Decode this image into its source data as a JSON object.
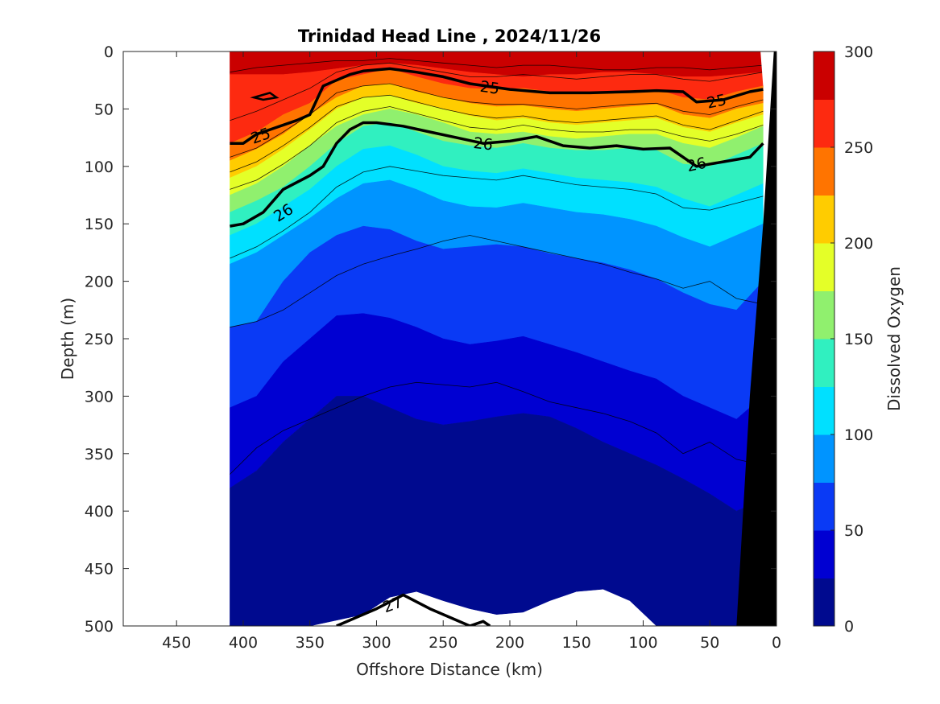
{
  "chart_data": {
    "type": "contour",
    "title": "Trinidad Head Line , 2024/11/26",
    "xlabel": "Offshore Distance (km)",
    "ylabel": "Depth (m)",
    "colorbar_label": "Dissolved Oxygen",
    "xlim": [
      490,
      0
    ],
    "x_reversed": true,
    "ylim": [
      0,
      500
    ],
    "y_reversed": true,
    "x_ticks": [
      450,
      400,
      350,
      300,
      250,
      200,
      150,
      100,
      50,
      0
    ],
    "y_ticks": [
      0,
      50,
      100,
      150,
      200,
      250,
      300,
      350,
      400,
      450,
      500
    ],
    "colorbar_ticks": [
      0,
      50,
      100,
      150,
      200,
      250,
      300
    ],
    "data_extent_x": [
      410,
      0
    ],
    "levels": [
      0,
      25,
      50,
      75,
      100,
      125,
      150,
      175,
      200,
      225,
      250,
      275,
      300
    ],
    "level_colors": [
      "#000a8f",
      "#0000d2",
      "#0a3af5",
      "#0094ff",
      "#00e0ff",
      "#30f0c0",
      "#90f06e",
      "#e4ff28",
      "#ffcc00",
      "#ff7400",
      "#fd2a10",
      "#ca0000"
    ],
    "x": [
      410,
      390,
      370,
      350,
      330,
      310,
      290,
      270,
      250,
      230,
      210,
      190,
      170,
      150,
      130,
      110,
      90,
      70,
      50,
      30,
      10
    ],
    "isopleth_depths": [
      [
        20,
        20,
        20,
        18,
        15,
        12,
        10,
        12,
        15,
        18,
        20,
        22,
        20,
        20,
        18,
        18,
        20,
        22,
        22,
        20,
        18
      ],
      [
        80,
        70,
        55,
        45,
        25,
        20,
        15,
        22,
        28,
        32,
        33,
        32,
        35,
        36,
        35,
        34,
        33,
        40,
        42,
        35,
        30
      ],
      [
        95,
        85,
        72,
        55,
        40,
        30,
        28,
        35,
        40,
        45,
        48,
        47,
        50,
        52,
        50,
        48,
        46,
        55,
        58,
        50,
        45
      ],
      [
        110,
        100,
        85,
        68,
        50,
        40,
        38,
        45,
        50,
        56,
        60,
        58,
        62,
        64,
        62,
        60,
        58,
        66,
        70,
        62,
        55
      ],
      [
        125,
        115,
        100,
        82,
        65,
        55,
        50,
        55,
        62,
        70,
        72,
        70,
        74,
        76,
        74,
        72,
        72,
        80,
        84,
        75,
        65
      ],
      [
        140,
        130,
        118,
        100,
        80,
        65,
        62,
        70,
        78,
        82,
        84,
        80,
        84,
        86,
        86,
        84,
        86,
        98,
        100,
        90,
        80
      ],
      [
        160,
        150,
        135,
        120,
        100,
        85,
        82,
        90,
        100,
        104,
        106,
        102,
        106,
        110,
        112,
        114,
        118,
        128,
        135,
        125,
        115
      ],
      [
        185,
        175,
        160,
        145,
        128,
        115,
        112,
        120,
        130,
        135,
        136,
        132,
        136,
        140,
        142,
        146,
        152,
        162,
        170,
        160,
        150
      ],
      [
        240,
        235,
        200,
        175,
        160,
        152,
        155,
        165,
        172,
        170,
        168,
        170,
        176,
        180,
        184,
        190,
        198,
        210,
        220,
        225,
        200
      ],
      [
        310,
        300,
        270,
        250,
        230,
        228,
        232,
        240,
        250,
        255,
        252,
        248,
        255,
        262,
        270,
        278,
        285,
        300,
        310,
        320,
        300
      ],
      [
        380,
        365,
        340,
        320,
        300,
        300,
        310,
        320,
        325,
        322,
        318,
        315,
        318,
        328,
        340,
        350,
        360,
        372,
        385,
        400,
        390
      ],
      [
        500,
        500,
        500,
        500,
        495,
        490,
        475,
        470,
        478,
        485,
        490,
        488,
        478,
        470,
        468,
        478,
        500,
        500,
        500,
        500,
        500
      ]
    ],
    "isopycnals": [
      {
        "label": "25",
        "x": [
          410,
          400,
          390,
          380,
          360,
          350,
          340,
          330,
          320,
          310,
          290,
          270,
          250,
          230,
          200,
          170,
          140,
          110,
          90,
          70,
          60,
          40,
          20,
          10
        ],
        "y": [
          80,
          80,
          72,
          68,
          60,
          55,
          30,
          25,
          20,
          17,
          15,
          18,
          22,
          28,
          33,
          36,
          36,
          35,
          34,
          35,
          44,
          42,
          35,
          33
        ]
      },
      {
        "label": "26",
        "x": [
          410,
          400,
          385,
          370,
          350,
          340,
          330,
          320,
          310,
          300,
          280,
          260,
          240,
          220,
          200,
          180,
          160,
          140,
          120,
          100,
          80,
          60,
          40,
          20,
          10
        ],
        "y": [
          152,
          150,
          140,
          120,
          108,
          100,
          80,
          68,
          62,
          62,
          65,
          70,
          75,
          80,
          78,
          74,
          82,
          84,
          82,
          85,
          84,
          100,
          96,
          92,
          80
        ]
      },
      {
        "label": "27",
        "x": [
          330,
          300,
          280,
          260,
          240,
          230,
          220,
          215
        ],
        "y": [
          500,
          485,
          473,
          485,
          495,
          500,
          496,
          500
        ]
      }
    ],
    "contour_labels": [
      {
        "text": "25",
        "x": 387,
        "y": 73,
        "angle": -20
      },
      {
        "text": "25",
        "x": 215,
        "y": 31,
        "angle": 8
      },
      {
        "text": "25",
        "x": 45,
        "y": 43,
        "angle": -12
      },
      {
        "text": "26",
        "x": 370,
        "y": 140,
        "angle": -32
      },
      {
        "text": "26",
        "x": 220,
        "y": 80,
        "angle": 6
      },
      {
        "text": "26",
        "x": 60,
        "y": 98,
        "angle": -12
      },
      {
        "text": "27",
        "x": 288,
        "y": 481,
        "angle": -20
      }
    ]
  },
  "theme": {
    "axis_color": "#262626",
    "bathymetry_color": "#000000",
    "contour_line_color": "#000000"
  }
}
